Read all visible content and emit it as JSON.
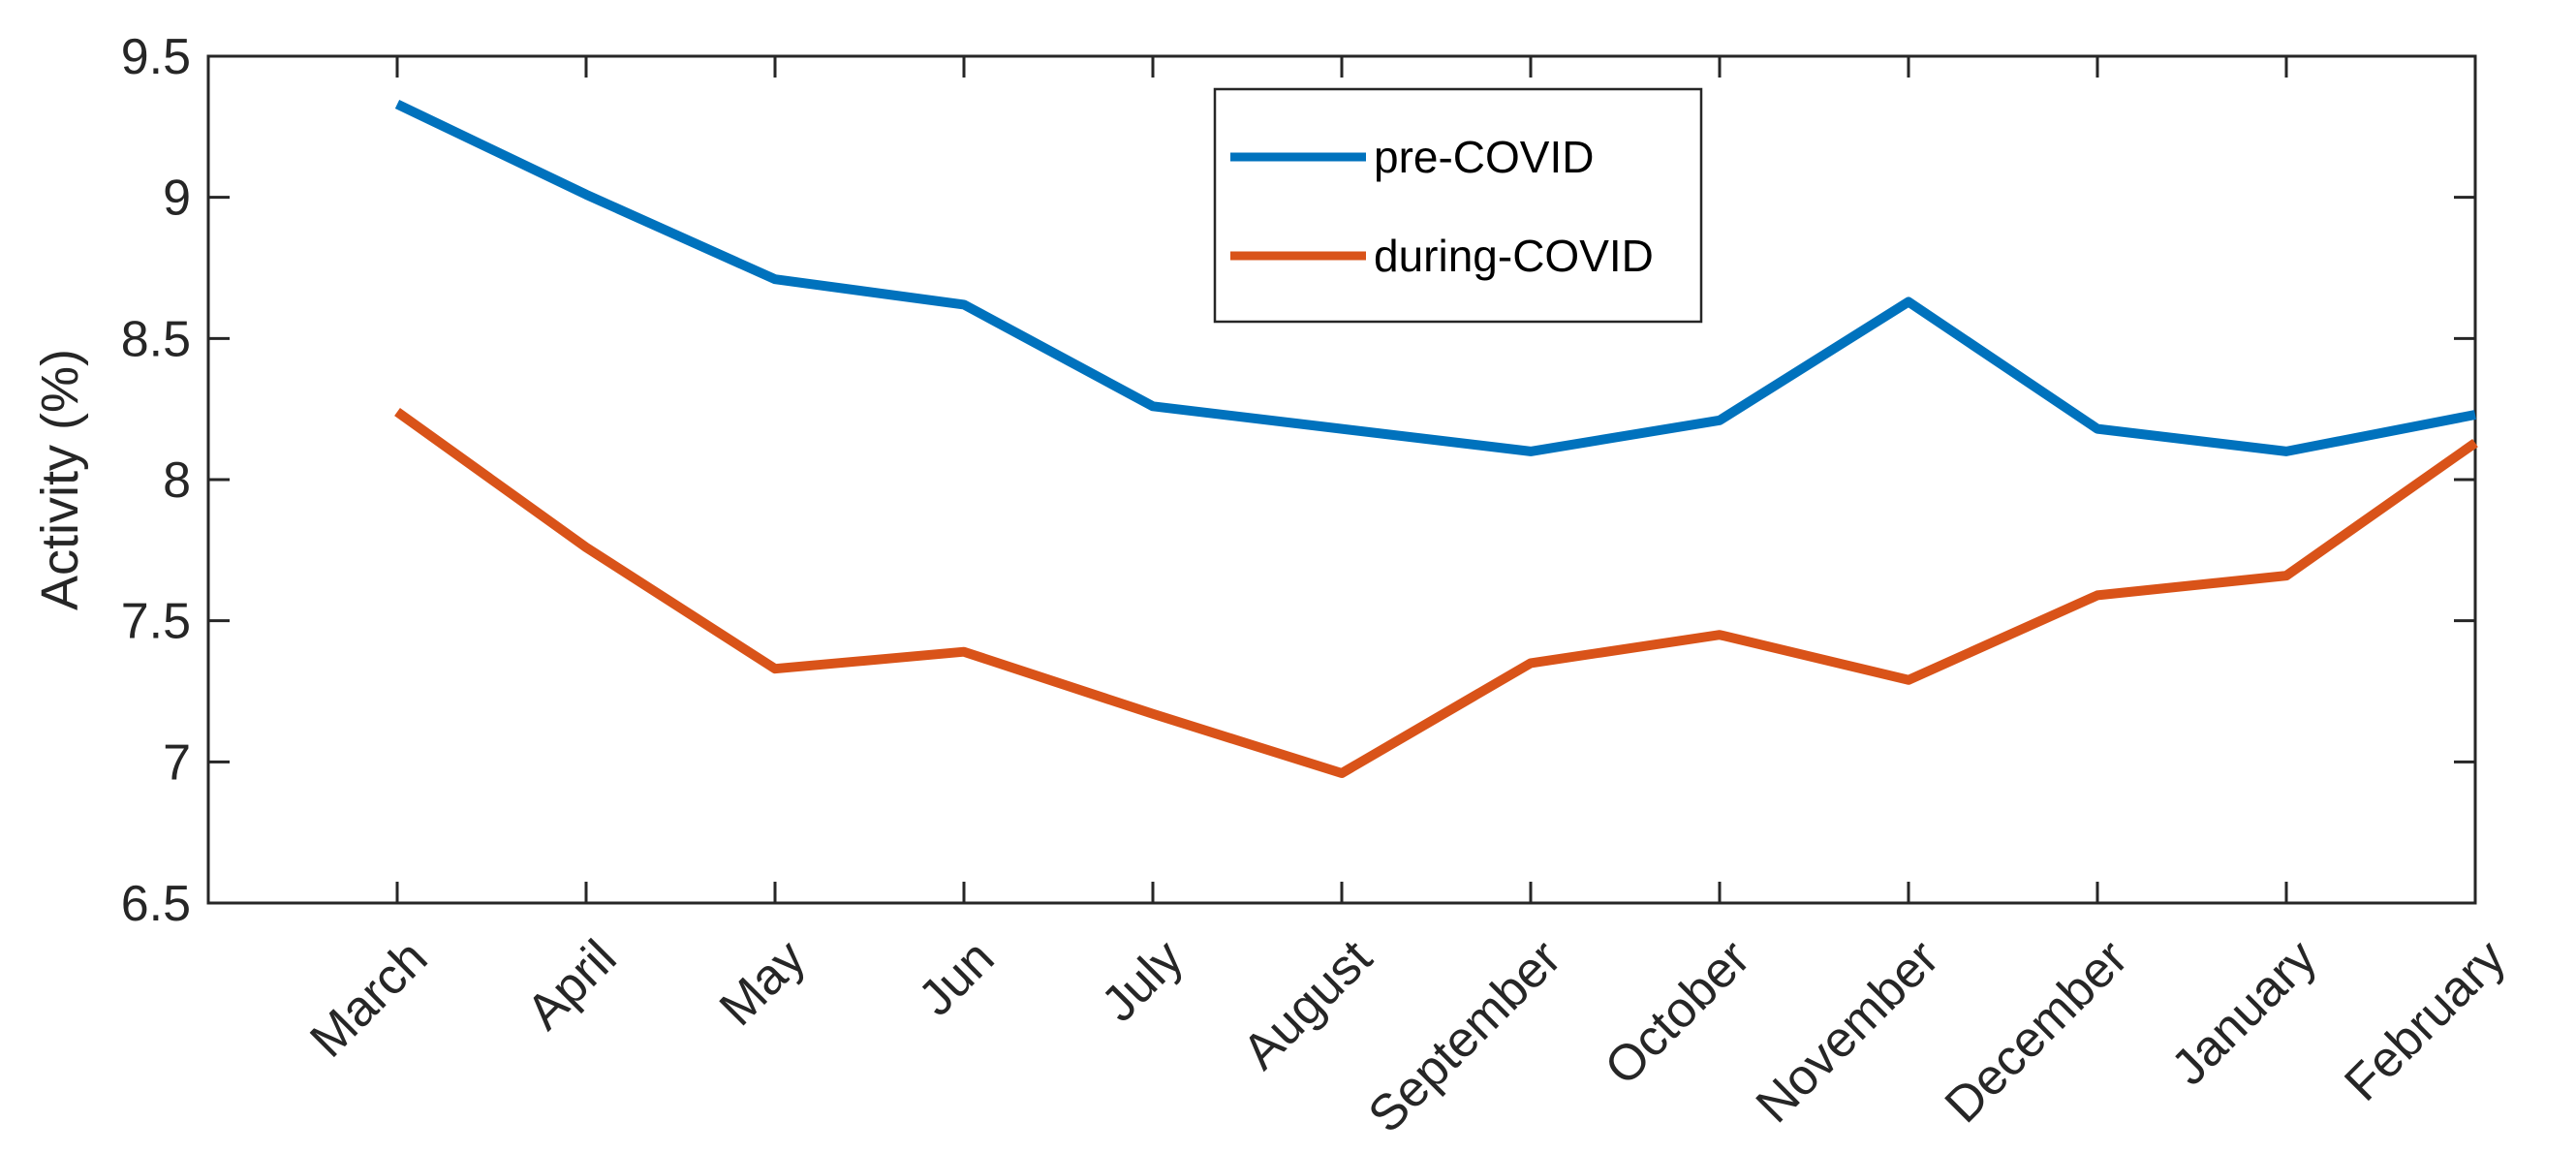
{
  "chart_data": {
    "type": "line",
    "title": "",
    "xlabel": "",
    "ylabel": "Activity (%)",
    "categories": [
      "March",
      "April",
      "May",
      "Jun",
      "July",
      "August",
      "September",
      "October",
      "November",
      "December",
      "January",
      "February"
    ],
    "ylim": [
      6.5,
      9.5
    ],
    "yticks": [
      "6.5",
      "7",
      "7.5",
      "8",
      "8.5",
      "9",
      "9.5"
    ],
    "grid": false,
    "legend_position": "top-center",
    "series": [
      {
        "name": "pre-COVID",
        "color": "#0072BD",
        "values": [
          9.33,
          9.01,
          8.71,
          8.62,
          8.26,
          8.18,
          8.1,
          8.21,
          8.63,
          8.18,
          8.1,
          8.23
        ]
      },
      {
        "name": "during-COVID",
        "color": "#D95319",
        "values": [
          8.24,
          7.76,
          7.33,
          7.39,
          7.17,
          6.96,
          7.35,
          7.45,
          7.29,
          7.59,
          7.66,
          8.13
        ]
      }
    ]
  }
}
